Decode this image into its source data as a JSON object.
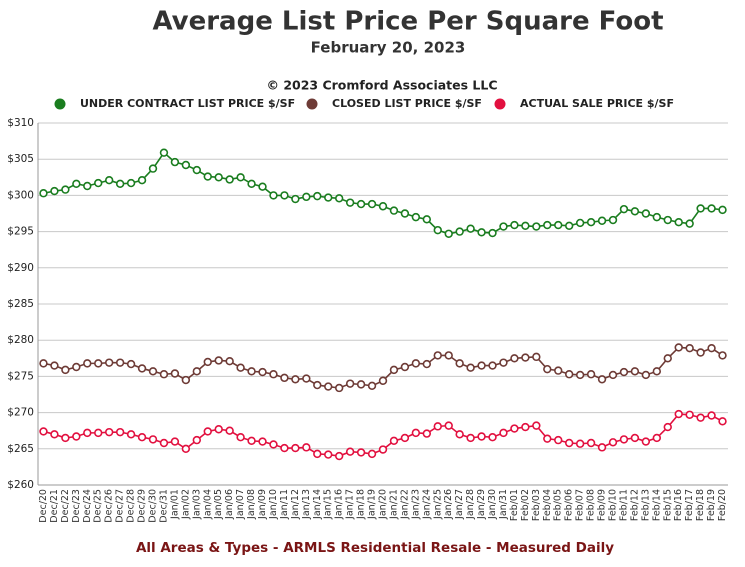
{
  "chart_data": {
    "type": "line",
    "title": "Average List Price Per Square Foot",
    "subtitle": "February 20, 2023",
    "copyright": "© 2023 Cromford Associates LLC",
    "footer": "All Areas & Types - ARMLS Residential Resale - Measured Daily",
    "legend": "top",
    "grid": true,
    "categories": [
      "Dec/20",
      "Dec/21",
      "Dec/22",
      "Dec/23",
      "Dec/24",
      "Dec/25",
      "Dec/26",
      "Dec/27",
      "Dec/28",
      "Dec/29",
      "Dec/30",
      "Dec/31",
      "Jan/01",
      "Jan/02",
      "Jan/03",
      "Jan/04",
      "Jan/05",
      "Jan/06",
      "Jan/07",
      "Jan/08",
      "Jan/09",
      "Jan/10",
      "Jan/11",
      "Jan/12",
      "Jan/13",
      "Jan/14",
      "Jan/15",
      "Jan/16",
      "Jan/17",
      "Jan/18",
      "Jan/19",
      "Jan/20",
      "Jan/21",
      "Jan/22",
      "Jan/23",
      "Jan/24",
      "Jan/25",
      "Jan/26",
      "Jan/27",
      "Jan/28",
      "Jan/29",
      "Jan/30",
      "Jan/31",
      "Feb/01",
      "Feb/02",
      "Feb/03",
      "Feb/04",
      "Feb/05",
      "Feb/06",
      "Feb/07",
      "Feb/08",
      "Feb/09",
      "Feb/10",
      "Feb/11",
      "Feb/12",
      "Feb/13",
      "Feb/14",
      "Feb/15",
      "Feb/16",
      "Feb/17",
      "Feb/18",
      "Feb/19",
      "Feb/20"
    ],
    "series": [
      {
        "name": "UNDER CONTRACT LIST PRICE $/SF",
        "color": "#1a7d1f",
        "values": [
          300.3,
          300.6,
          300.8,
          301.6,
          301.3,
          301.7,
          302.1,
          301.6,
          301.7,
          302.1,
          303.7,
          305.9,
          304.6,
          304.2,
          303.5,
          302.6,
          302.5,
          302.2,
          302.5,
          301.6,
          301.2,
          300.0,
          300.0,
          299.5,
          299.8,
          299.9,
          299.7,
          299.6,
          299.0,
          298.8,
          298.8,
          298.5,
          297.9,
          297.5,
          297.0,
          296.7,
          295.2,
          294.7,
          295.0,
          295.4,
          294.9,
          294.8,
          295.7,
          295.9,
          295.8,
          295.7,
          295.9,
          295.9,
          295.8,
          296.2,
          296.3,
          296.5,
          296.6,
          298.1,
          297.8,
          297.5,
          297.0,
          296.6,
          296.3,
          296.1,
          298.2,
          298.2,
          298.0
        ]
      },
      {
        "name": "CLOSED LIST PRICE $/SF",
        "color": "#6e3b36",
        "values": [
          276.8,
          276.5,
          275.9,
          276.3,
          276.8,
          276.8,
          276.9,
          276.9,
          276.7,
          276.1,
          275.7,
          275.3,
          275.4,
          274.5,
          275.7,
          277.0,
          277.2,
          277.1,
          276.2,
          275.7,
          275.6,
          275.3,
          274.8,
          274.6,
          274.7,
          273.8,
          273.6,
          273.4,
          274.0,
          273.9,
          273.7,
          274.4,
          275.9,
          276.3,
          276.8,
          276.7,
          277.9,
          277.9,
          276.8,
          276.2,
          276.5,
          276.5,
          276.9,
          277.5,
          277.6,
          277.7,
          276.0,
          275.8,
          275.3,
          275.2,
          275.3,
          274.6,
          275.2,
          275.6,
          275.7,
          275.2,
          275.7,
          277.5,
          279.0,
          278.9,
          278.3,
          278.9,
          277.9
        ]
      },
      {
        "name": "ACTUAL SALE PRICE $/SF",
        "color": "#e2103f",
        "values": [
          267.4,
          267.0,
          266.5,
          266.7,
          267.2,
          267.2,
          267.3,
          267.3,
          267.0,
          266.6,
          266.3,
          265.8,
          266.0,
          265.0,
          266.2,
          267.4,
          267.7,
          267.5,
          266.6,
          266.1,
          266.0,
          265.6,
          265.1,
          265.1,
          265.2,
          264.3,
          264.2,
          264.0,
          264.6,
          264.5,
          264.3,
          264.9,
          266.1,
          266.5,
          267.2,
          267.1,
          268.1,
          268.2,
          267.0,
          266.5,
          266.7,
          266.6,
          267.2,
          267.8,
          268.0,
          268.2,
          266.4,
          266.2,
          265.8,
          265.7,
          265.8,
          265.2,
          265.9,
          266.3,
          266.5,
          266.0,
          266.5,
          268.0,
          269.8,
          269.7,
          269.3,
          269.6,
          268.8
        ]
      }
    ],
    "ylim": [
      260,
      310
    ],
    "yticks": [
      {
        "value": 260,
        "label": "$260"
      },
      {
        "value": 265,
        "label": "$265"
      },
      {
        "value": 270,
        "label": "$270"
      },
      {
        "value": 275,
        "label": "$275"
      },
      {
        "value": 280,
        "label": "$280"
      },
      {
        "value": 285,
        "label": "$285"
      },
      {
        "value": 290,
        "label": "$290"
      },
      {
        "value": 295,
        "label": "$295"
      },
      {
        "value": 300,
        "label": "$300"
      },
      {
        "value": 305,
        "label": "$305"
      },
      {
        "value": 310,
        "label": "$310"
      }
    ]
  }
}
